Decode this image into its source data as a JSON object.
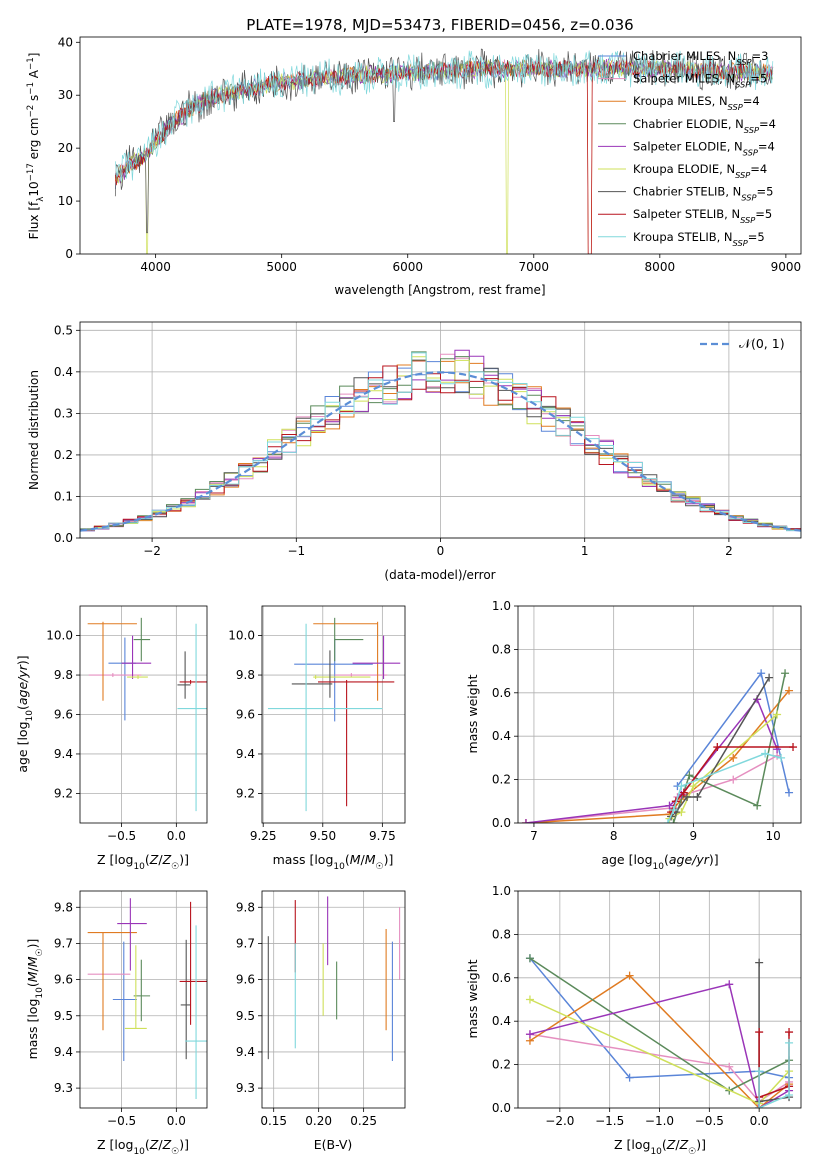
{
  "figure_title": "PLATE=1978, MJD=53473, FIBERID=0456, z=0.036",
  "colors": {
    "Chabrier MILES": "#5a85d8",
    "Salpeter MILES": "#e58fc0",
    "Kroupa MILES": "#e07b22",
    "Chabrier ELODIE": "#5b8a5b",
    "Salpeter ELODIE": "#9a35b8",
    "Kroupa ELODIE": "#cfe05a",
    "Chabrier STELIB": "#555555",
    "Salpeter STELIB": "#b8141e",
    "Kroupa STELIB": "#80d8dc",
    "gaussian": "#5b8ed6"
  },
  "chart_data": [
    {
      "type": "line",
      "panel": "spectrum",
      "title": "PLATE=1978, MJD=53473, FIBERID=0456, z=0.036",
      "xlabel": "wavelength [Angstrom, rest frame]",
      "ylabel": "Flux [f_λ10^-17 erg cm^-2 s^-1 A^-1]",
      "xlim": [
        3400,
        9120
      ],
      "ylim": [
        0,
        41
      ],
      "xticks": [
        4000,
        5000,
        6000,
        7000,
        8000,
        9000
      ],
      "yticks": [
        0,
        10,
        20,
        30,
        40
      ],
      "x": [
        3680,
        3800,
        3900,
        4000,
        4100,
        4200,
        4300,
        4400,
        4500,
        4600,
        4700,
        4800,
        4900,
        5000,
        5200,
        5400,
        5600,
        5800,
        6000,
        6200,
        6400,
        6600,
        6800,
        7000,
        7200,
        7400,
        7600,
        7800,
        8000,
        8200,
        8400,
        8600,
        8800,
        8900
      ],
      "y": [
        14,
        17,
        18,
        21,
        24,
        26,
        28,
        29,
        30,
        30.5,
        31,
        31.5,
        32,
        32.5,
        33,
        33.5,
        33.8,
        34,
        34.2,
        34.5,
        34.8,
        35,
        35,
        35,
        35,
        35,
        35.2,
        35,
        35,
        34.8,
        34.5,
        34.5,
        34.3,
        34
      ],
      "dips": [
        [
          3933,
          3
        ],
        [
          5890,
          26
        ],
        [
          6790,
          1
        ],
        [
          7440,
          0
        ]
      ],
      "legend": [
        "Chabrier MILES, N_SSP=3",
        "Salpeter MILES, N_SSP=5",
        "Kroupa MILES, N_SSP=4",
        "Chabrier ELODIE, N_SSP=4",
        "Salpeter ELODIE, N_SSP=4",
        "Kroupa ELODIE, N_SSP=4",
        "Chabrier STELIB, N_SSP=5",
        "Salpeter STELIB, N_SSP=5",
        "Kroupa STELIB, N_SSP=5"
      ],
      "legend_position": "upper-right",
      "grid": false
    },
    {
      "type": "histogram",
      "panel": "residuals",
      "xlabel": "(data-model)/error",
      "ylabel": "Normed distribution",
      "xlim": [
        -2.5,
        2.5
      ],
      "ylim": [
        0,
        0.52
      ],
      "xticks": [
        -2,
        -1,
        0,
        1,
        2
      ],
      "yticks": [
        0.0,
        0.1,
        0.2,
        0.3,
        0.4,
        0.5
      ],
      "legend": [
        "𝒩(0, 1)"
      ],
      "legend_position": "upper-right",
      "grid": true,
      "bin_width": 0.1,
      "bin_start": -2.5
    },
    {
      "type": "scatter",
      "panel": "age_vs_Z",
      "xlabel": "Z [log10(Z/Z☉)]",
      "ylabel": "age  [log10(age/yr)]",
      "xlim": [
        -0.88,
        0.28
      ],
      "ylim": [
        9.05,
        10.15
      ],
      "xticks": [
        -0.5,
        0.0
      ],
      "yticks": [
        9.2,
        9.4,
        9.6,
        9.8,
        10.0
      ],
      "grid": true,
      "points": [
        {
          "name": "Chabrier MILES",
          "x": -0.47,
          "y": 9.86,
          "xerr": [
            0.15,
            0.1
          ],
          "yerr": [
            0.29,
            0.13
          ]
        },
        {
          "name": "Salpeter MILES",
          "x": -0.58,
          "y": 9.8,
          "xerr": [
            0.22,
            0.26
          ],
          "yerr": [
            0.01,
            0.01
          ]
        },
        {
          "name": "Kroupa MILES",
          "x": -0.67,
          "y": 10.06,
          "xerr": [
            0.14,
            0.31
          ],
          "yerr": [
            0.39,
            0.01
          ]
        },
        {
          "name": "Chabrier ELODIE",
          "x": -0.32,
          "y": 9.98,
          "xerr": [
            0.07,
            0.08
          ],
          "yerr": [
            0.11,
            0.11
          ]
        },
        {
          "name": "Salpeter ELODIE",
          "x": -0.4,
          "y": 9.86,
          "xerr": [
            0.1,
            0.17
          ],
          "yerr": [
            0.08,
            0.14
          ]
        },
        {
          "name": "Kroupa ELODIE",
          "x": -0.35,
          "y": 9.79,
          "xerr": [
            0.1,
            0.09
          ],
          "yerr": [
            0.01,
            0.01
          ]
        },
        {
          "name": "Chabrier STELIB",
          "x": 0.08,
          "y": 9.75,
          "xerr": [
            0.07,
            0.05
          ],
          "yerr": [
            0.07,
            0.17
          ]
        },
        {
          "name": "Salpeter STELIB",
          "x": 0.13,
          "y": 9.765,
          "xerr": [
            0.1,
            0.15
          ],
          "yerr": [
            0.01,
            0.01
          ]
        },
        {
          "name": "Kroupa STELIB",
          "x": 0.18,
          "y": 9.63,
          "xerr": [
            0.17,
            0.1
          ],
          "yerr": [
            0.52,
            0.43
          ]
        }
      ]
    },
    {
      "type": "scatter",
      "panel": "age_vs_mass",
      "xlabel": "mass [log10(M/M☉)]",
      "ylabel": "",
      "xlim": [
        9.245,
        9.845
      ],
      "ylim": [
        9.05,
        10.15
      ],
      "xticks": [
        9.25,
        9.5,
        9.75
      ],
      "yticks": [
        9.2,
        9.4,
        9.6,
        9.8,
        10.0
      ],
      "grid": true,
      "points": [
        {
          "name": "Chabrier MILES",
          "x": 9.55,
          "y": 9.855,
          "xerr": [
            0.17,
            0.16
          ],
          "yerr": [
            0.29,
            0.13
          ]
        },
        {
          "name": "Salpeter MILES",
          "x": 9.62,
          "y": 9.8,
          "xerr": [
            0.07,
            0.15
          ],
          "yerr": [
            0.01,
            0.01
          ]
        },
        {
          "name": "Kroupa MILES",
          "x": 9.73,
          "y": 10.06,
          "xerr": [
            0.27,
            0.0
          ],
          "yerr": [
            0.39,
            0.01
          ]
        },
        {
          "name": "Chabrier ELODIE",
          "x": 9.55,
          "y": 9.98,
          "xerr": [
            0.0,
            0.12
          ],
          "yerr": [
            0.11,
            0.11
          ]
        },
        {
          "name": "Salpeter ELODIE",
          "x": 9.755,
          "y": 9.86,
          "xerr": [
            0.13,
            0.07
          ],
          "yerr": [
            0.08,
            0.14
          ]
        },
        {
          "name": "Kroupa ELODIE",
          "x": 9.47,
          "y": 9.79,
          "xerr": [
            0.01,
            0.23
          ],
          "yerr": [
            0.01,
            0.01
          ]
        },
        {
          "name": "Chabrier STELIB",
          "x": 9.53,
          "y": 9.755,
          "xerr": [
            0.16,
            0.01
          ],
          "yerr": [
            0.07,
            0.17
          ]
        },
        {
          "name": "Salpeter STELIB",
          "x": 9.6,
          "y": 9.765,
          "xerr": [
            0.12,
            0.2
          ],
          "yerr": [
            0.63,
            0.01
          ]
        },
        {
          "name": "Kroupa STELIB",
          "x": 9.43,
          "y": 9.63,
          "xerr": [
            0.16,
            0.32
          ],
          "yerr": [
            0.52,
            0.43
          ]
        }
      ]
    },
    {
      "type": "line",
      "panel": "mass_weight_vs_age",
      "xlabel": "age  [log10(age/yr)]",
      "ylabel": "mass weight",
      "xlim": [
        6.8,
        10.35
      ],
      "ylim": [
        0,
        1
      ],
      "xticks": [
        7,
        8,
        9,
        10
      ],
      "yticks": [
        0.0,
        0.2,
        0.4,
        0.6,
        0.8,
        1.0
      ],
      "grid": true,
      "series": [
        {
          "name": "Chabrier MILES",
          "x": [
            8.8,
            9.85,
            10.2
          ],
          "y": [
            0.17,
            0.69,
            0.14
          ]
        },
        {
          "name": "Salpeter MILES",
          "x": [
            6.9,
            8.75,
            8.8,
            9.5,
            10.05
          ],
          "y": [
            0.0,
            0.07,
            0.12,
            0.2,
            0.31
          ]
        },
        {
          "name": "Kroupa MILES",
          "x": [
            6.9,
            8.7,
            8.85,
            9.5,
            10.2
          ],
          "y": [
            0.0,
            0.04,
            0.11,
            0.3,
            0.61
          ]
        },
        {
          "name": "Chabrier ELODIE",
          "x": [
            8.75,
            8.95,
            9.8,
            10.15
          ],
          "y": [
            0.0,
            0.22,
            0.08,
            0.69
          ]
        },
        {
          "name": "Salpeter ELODIE",
          "x": [
            6.9,
            8.7,
            8.85,
            9.8,
            10.05
          ],
          "y": [
            0.0,
            0.08,
            0.13,
            0.57,
            0.34
          ]
        },
        {
          "name": "Kroupa ELODIE",
          "x": [
            8.7,
            8.85,
            9.0,
            10.05
          ],
          "y": [
            0.02,
            0.05,
            0.17,
            0.5
          ]
        },
        {
          "name": "Chabrier STELIB",
          "x": [
            8.72,
            8.78,
            8.92,
            9.05,
            9.95
          ],
          "y": [
            0.03,
            0.05,
            0.12,
            0.12,
            0.67
          ]
        },
        {
          "name": "Salpeter STELIB",
          "x": [
            8.72,
            8.78,
            8.88,
            9.3,
            10.25
          ],
          "y": [
            0.05,
            0.1,
            0.14,
            0.35,
            0.35
          ]
        },
        {
          "name": "Kroupa STELIB",
          "x": [
            8.68,
            8.75,
            8.85,
            9.9,
            10.1
          ],
          "y": [
            0.0,
            0.06,
            0.17,
            0.32,
            0.3
          ]
        }
      ]
    },
    {
      "type": "scatter",
      "panel": "mass_vs_Z",
      "xlabel": "Z [log10(Z/Z☉)]",
      "ylabel": "mass [log10(M/M☉)]",
      "xlim": [
        -0.88,
        0.28
      ],
      "ylim": [
        9.245,
        9.845
      ],
      "xticks": [
        -0.5,
        0.0
      ],
      "yticks": [
        9.3,
        9.4,
        9.5,
        9.6,
        9.7,
        9.8
      ],
      "grid": true,
      "points": [
        {
          "name": "Chabrier MILES",
          "x": -0.48,
          "y": 9.545,
          "xerr": [
            0.1,
            0.12
          ],
          "yerr": [
            0.17,
            0.16
          ]
        },
        {
          "name": "Salpeter MILES",
          "x": -0.58,
          "y": 9.615,
          "xerr": [
            0.23,
            0.16
          ],
          "yerr": [
            0.0,
            0.0
          ]
        },
        {
          "name": "Kroupa MILES",
          "x": -0.67,
          "y": 9.73,
          "xerr": [
            0.14,
            0.31
          ],
          "yerr": [
            0.27,
            0.0
          ]
        },
        {
          "name": "Chabrier ELODIE",
          "x": -0.32,
          "y": 9.555,
          "xerr": [
            0.07,
            0.08
          ],
          "yerr": [
            0.07,
            0.1
          ]
        },
        {
          "name": "Salpeter ELODIE",
          "x": -0.42,
          "y": 9.755,
          "xerr": [
            0.12,
            0.15
          ],
          "yerr": [
            0.13,
            0.07
          ]
        },
        {
          "name": "Kroupa ELODIE",
          "x": -0.37,
          "y": 9.465,
          "xerr": [
            0.1,
            0.1
          ],
          "yerr": [
            0.0,
            0.23
          ]
        },
        {
          "name": "Chabrier STELIB",
          "x": 0.09,
          "y": 9.53,
          "xerr": [
            0.05,
            0.04
          ],
          "yerr": [
            0.15,
            0.18
          ]
        },
        {
          "name": "Salpeter STELIB",
          "x": 0.13,
          "y": 9.595,
          "xerr": [
            0.1,
            0.15
          ],
          "yerr": [
            0.12,
            0.22
          ]
        },
        {
          "name": "Kroupa STELIB",
          "x": 0.18,
          "y": 9.43,
          "xerr": [
            0.1,
            0.1
          ],
          "yerr": [
            0.16,
            0.32
          ]
        }
      ]
    },
    {
      "type": "scatter",
      "panel": "mass_vs_EBV",
      "xlabel": "E(B-V)",
      "ylabel": "",
      "xlim": [
        0.137,
        0.296
      ],
      "ylim": [
        9.245,
        9.845
      ],
      "xticks": [
        0.15,
        0.2,
        0.25
      ],
      "yticks": [
        9.3,
        9.4,
        9.5,
        9.6,
        9.7,
        9.8
      ],
      "grid": true,
      "points": [
        {
          "name": "Chabrier MILES",
          "x": 0.282,
          "y": 9.545,
          "yerr": [
            0.17,
            0.16
          ]
        },
        {
          "name": "Salpeter MILES",
          "x": 0.29,
          "y": 9.7,
          "yerr": [
            0.1,
            0.1
          ]
        },
        {
          "name": "Kroupa MILES",
          "x": 0.275,
          "y": 9.6,
          "yerr": [
            0.14,
            0.14
          ]
        },
        {
          "name": "Chabrier ELODIE",
          "x": 0.22,
          "y": 9.57,
          "yerr": [
            0.08,
            0.08
          ]
        },
        {
          "name": "Salpeter ELODIE",
          "x": 0.21,
          "y": 9.74,
          "yerr": [
            0.1,
            0.09
          ]
        },
        {
          "name": "Kroupa ELODIE",
          "x": 0.205,
          "y": 9.6,
          "yerr": [
            0.1,
            0.1
          ]
        },
        {
          "name": "Chabrier STELIB",
          "x": 0.144,
          "y": 9.55,
          "yerr": [
            0.17,
            0.17
          ]
        },
        {
          "name": "Salpeter STELIB",
          "x": 0.174,
          "y": 9.72,
          "yerr": [
            0.1,
            0.1
          ]
        },
        {
          "name": "Kroupa STELIB",
          "x": 0.174,
          "y": 9.55,
          "yerr": [
            0.14,
            0.15
          ]
        }
      ]
    },
    {
      "type": "line",
      "panel": "mass_weight_vs_Z",
      "xlabel": "Z [log10(Z/Z☉)]",
      "ylabel": "mass weight",
      "xlim": [
        -2.42,
        0.42
      ],
      "ylim": [
        0,
        1
      ],
      "xticks": [
        -2.0,
        -1.5,
        -1.0,
        -0.5,
        0.0
      ],
      "yticks": [
        0.0,
        0.2,
        0.4,
        0.6,
        0.8,
        1.0
      ],
      "grid": true,
      "series": [
        {
          "name": "Chabrier MILES",
          "x": [
            -2.3,
            -1.3,
            0.0,
            0.3
          ],
          "y": [
            0.69,
            0.14,
            0.17,
            0.14
          ]
        },
        {
          "name": "Salpeter MILES",
          "x": [
            -2.3,
            -0.3,
            0.0,
            0.3
          ],
          "y": [
            0.34,
            0.19,
            0.03,
            0.12
          ]
        },
        {
          "name": "Kroupa MILES",
          "x": [
            -2.3,
            -1.3,
            0.0,
            0.3
          ],
          "y": [
            0.31,
            0.61,
            0.0,
            0.11
          ]
        },
        {
          "name": "Chabrier ELODIE",
          "x": [
            -2.3,
            -0.3,
            0.3
          ],
          "y": [
            0.69,
            0.08,
            0.22
          ]
        },
        {
          "name": "Salpeter ELODIE",
          "x": [
            -2.3,
            -0.3,
            0.0,
            0.3
          ],
          "y": [
            0.34,
            0.57,
            0.0,
            0.08
          ]
        },
        {
          "name": "Kroupa ELODIE",
          "x": [
            -2.3,
            0.0,
            0.3
          ],
          "y": [
            0.5,
            0.02,
            0.17
          ]
        },
        {
          "name": "Chabrier STELIB",
          "x": [
            0.0,
            0.0,
            0.3
          ],
          "y": [
            0.67,
            0.03,
            0.05
          ]
        },
        {
          "name": "Salpeter STELIB",
          "x": [
            0.0,
            0.0,
            0.3,
            0.3
          ],
          "y": [
            0.35,
            0.05,
            0.1,
            0.35
          ]
        },
        {
          "name": "Kroupa STELIB",
          "x": [
            0.0,
            0.0,
            0.3,
            0.3
          ],
          "y": [
            0.17,
            0.0,
            0.06,
            0.3
          ]
        }
      ]
    }
  ]
}
